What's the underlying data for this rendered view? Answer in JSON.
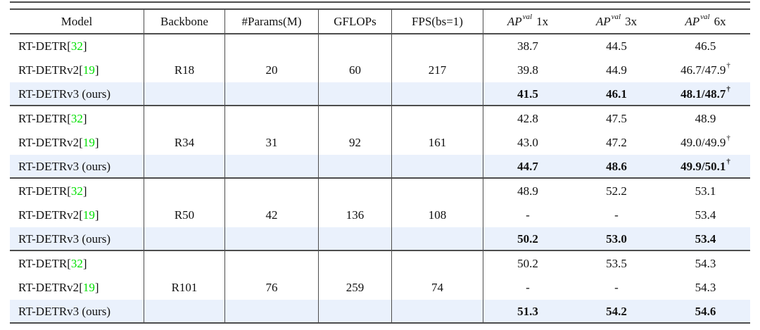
{
  "table": {
    "headers": {
      "model": "Model",
      "backbone": "Backbone",
      "params": "#Params(M)",
      "gflops": "GFLOPs",
      "fps": "FPS(bs=1)",
      "ap": [
        {
          "base": "AP",
          "sup": "val",
          "schedule": "1x"
        },
        {
          "base": "AP",
          "sup": "val",
          "schedule": "3x"
        },
        {
          "base": "AP",
          "sup": "val",
          "schedule": "6x"
        }
      ]
    },
    "symbols": {
      "dagger": "†",
      "bracket_open": " [",
      "bracket_close": "]"
    },
    "groups": [
      {
        "backbone": "R18",
        "params": "20",
        "gflops": "60",
        "fps": "217",
        "rows": [
          {
            "model": "RT-DETR",
            "cite": "32",
            "ap": [
              "38.7",
              "44.5",
              "46.5"
            ],
            "dagger": false,
            "bold": false,
            "highlight": false
          },
          {
            "model": "RT-DETRv2",
            "cite": "19",
            "ap": [
              "39.8",
              "44.9",
              "46.7/47.9"
            ],
            "dagger": true,
            "bold": false,
            "highlight": false
          },
          {
            "model": "RT-DETRv3 (ours)",
            "cite": null,
            "ap": [
              "41.5",
              "46.1",
              "48.1/48.7"
            ],
            "dagger": true,
            "bold": true,
            "highlight": true
          }
        ]
      },
      {
        "backbone": "R34",
        "params": "31",
        "gflops": "92",
        "fps": "161",
        "rows": [
          {
            "model": "RT-DETR",
            "cite": "32",
            "ap": [
              "42.8",
              "47.5",
              "48.9"
            ],
            "dagger": false,
            "bold": false,
            "highlight": false
          },
          {
            "model": "RT-DETRv2",
            "cite": "19",
            "ap": [
              "43.0",
              "47.2",
              "49.0/49.9"
            ],
            "dagger": true,
            "bold": false,
            "highlight": false
          },
          {
            "model": "RT-DETRv3 (ours)",
            "cite": null,
            "ap": [
              "44.7",
              "48.6",
              "49.9/50.1"
            ],
            "dagger": true,
            "bold": true,
            "highlight": true
          }
        ]
      },
      {
        "backbone": "R50",
        "params": "42",
        "gflops": "136",
        "fps": "108",
        "rows": [
          {
            "model": "RT-DETR",
            "cite": "32",
            "ap": [
              "48.9",
              "52.2",
              "53.1"
            ],
            "dagger": false,
            "bold": false,
            "highlight": false
          },
          {
            "model": "RT-DETRv2",
            "cite": "19",
            "ap": [
              "-",
              "-",
              "53.4"
            ],
            "dagger": false,
            "bold": false,
            "highlight": false
          },
          {
            "model": "RT-DETRv3 (ours)",
            "cite": null,
            "ap": [
              "50.2",
              "53.0",
              "53.4"
            ],
            "dagger": false,
            "bold": true,
            "highlight": true
          }
        ]
      },
      {
        "backbone": "R101",
        "params": "76",
        "gflops": "259",
        "fps": "74",
        "rows": [
          {
            "model": "RT-DETR",
            "cite": "32",
            "ap": [
              "50.2",
              "53.5",
              "54.3"
            ],
            "dagger": false,
            "bold": false,
            "highlight": false
          },
          {
            "model": "RT-DETRv2",
            "cite": "19",
            "ap": [
              "-",
              "-",
              "54.3"
            ],
            "dagger": false,
            "bold": false,
            "highlight": false
          },
          {
            "model": "RT-DETRv3 (ours)",
            "cite": null,
            "ap": [
              "51.3",
              "54.2",
              "54.6"
            ],
            "dagger": false,
            "bold": true,
            "highlight": true
          }
        ]
      }
    ],
    "colors": {
      "highlight_row": "#EAF1FC",
      "citation": "#00E000",
      "rule": "#4D4D4D",
      "text": "#111111"
    }
  }
}
